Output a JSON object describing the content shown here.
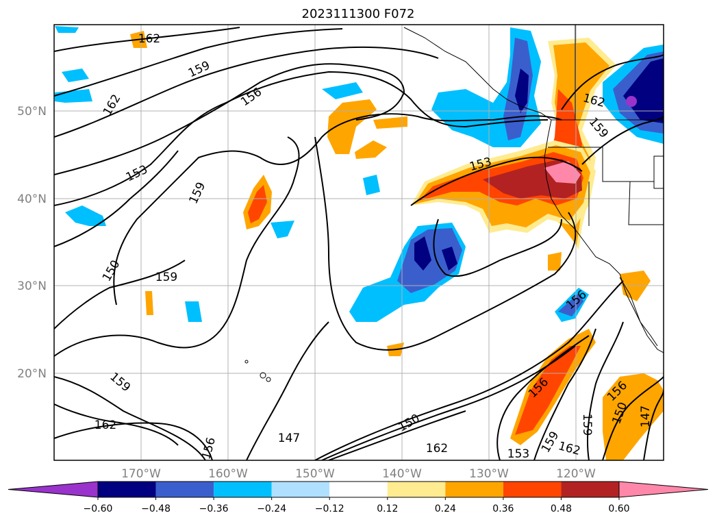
{
  "title": "2023111300 F072",
  "map": {
    "lat_labels": [
      "50°N",
      "40°N",
      "30°N",
      "20°N"
    ],
    "lon_labels": [
      "170°W",
      "160°W",
      "150°W",
      "140°W",
      "130°W",
      "120°W"
    ],
    "contour_labels": [
      "162",
      "159",
      "162",
      "156",
      "153",
      "159",
      "150",
      "159",
      "153",
      "162",
      "159",
      "156",
      "159",
      "162",
      "147",
      "150",
      "162",
      "156",
      "159",
      "159",
      "162",
      "156",
      "150",
      "147",
      "156",
      "153"
    ],
    "contour_line_color": "#000000",
    "coastline_color": "#000000",
    "grid": true
  },
  "colorbar": {
    "ticks": [
      "−0.60",
      "−0.48",
      "−0.36",
      "−0.24",
      "−0.12",
      "0.12",
      "0.24",
      "0.36",
      "0.48",
      "0.60"
    ],
    "colors": [
      "#9933cc",
      "#000080",
      "#3a5fcd",
      "#00bfff",
      "#b0e0ff",
      "#ffffff",
      "#ffeb90",
      "#ffa500",
      "#ff4500",
      "#b22222",
      "#ff88aa"
    ]
  }
}
